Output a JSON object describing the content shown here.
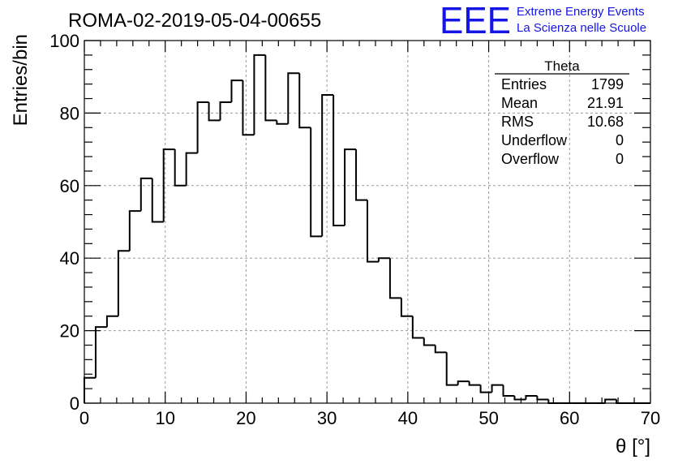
{
  "chart_data": {
    "type": "bar",
    "title": "ROMA-02-2019-05-04-00655",
    "xlabel": "θ [°]",
    "ylabel": "Entries/bin",
    "xlim": [
      0,
      70
    ],
    "ylim": [
      0,
      100
    ],
    "x_ticks": [
      "0",
      "10",
      "20",
      "30",
      "40",
      "50",
      "60",
      "70"
    ],
    "y_ticks": [
      "0",
      "20",
      "40",
      "60",
      "80",
      "100"
    ],
    "grid": true,
    "bin_width": 1.4,
    "values": [
      7,
      21,
      24,
      42,
      53,
      62,
      50,
      70,
      60,
      69,
      83,
      78,
      83,
      89,
      74,
      96,
      78,
      77,
      91,
      76,
      46,
      85,
      49,
      70,
      56,
      39,
      40,
      29,
      24,
      18,
      16,
      14,
      5,
      6,
      5,
      3,
      5,
      2,
      1,
      2,
      1,
      0,
      0,
      0,
      0,
      0,
      1,
      0,
      0,
      0
    ],
    "stats_box": {
      "title": "Theta",
      "rows": [
        {
          "label": "Entries",
          "value": "1799"
        },
        {
          "label": "Mean",
          "value": "21.91"
        },
        {
          "label": "RMS",
          "value": "10.68"
        },
        {
          "label": "Underflow",
          "value": "0"
        },
        {
          "label": "Overflow",
          "value": "0"
        }
      ]
    }
  },
  "logo": {
    "text": "EEE",
    "line1": "Extreme Energy Events",
    "line2": "La Scienza nelle Scuole",
    "color": "#1515e6"
  },
  "colors": {
    "line": "#000000",
    "grid": "#9a9a9a"
  }
}
